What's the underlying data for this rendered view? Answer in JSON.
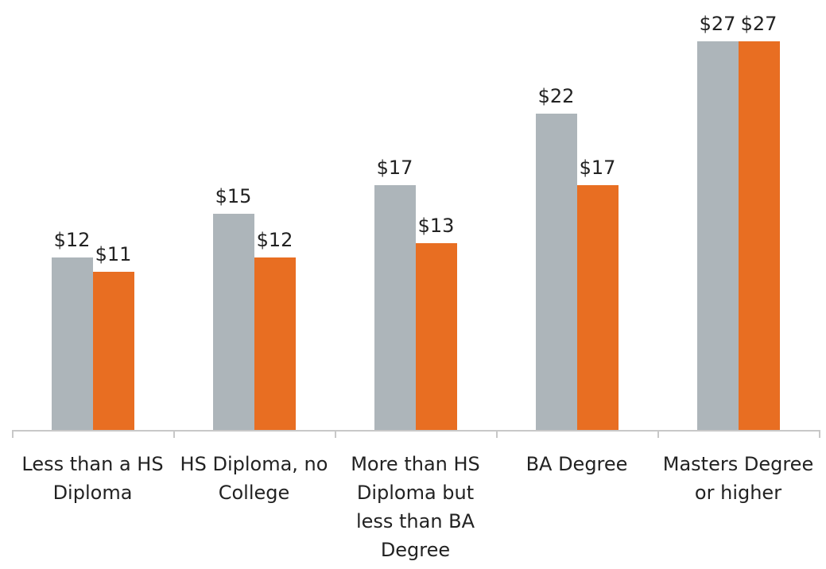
{
  "chart_data": {
    "type": "bar",
    "categories": [
      "Less than a HS Diploma",
      "HS Diploma, no College",
      "More than HS Diploma but less than BA Degree",
      "BA Degree",
      "Masters Degree or higher"
    ],
    "series": [
      {
        "color": "#adb5ba",
        "values": [
          12,
          15,
          17,
          22,
          27
        ],
        "value_labels": [
          "$12",
          "$15",
          "$17",
          "$22",
          "$27"
        ]
      },
      {
        "color": "#e86e22",
        "values": [
          11,
          12,
          13,
          17,
          27
        ],
        "value_labels": [
          "$11",
          "$12",
          "$13",
          "$17",
          "$27"
        ]
      }
    ]
  }
}
